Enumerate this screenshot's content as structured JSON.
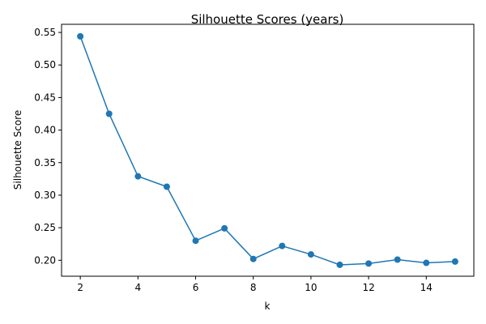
{
  "chart_data": {
    "type": "line",
    "title": "Silhouette Scores (years)",
    "xlabel": "k",
    "ylabel": "Silhouette Score",
    "x": [
      2,
      3,
      4,
      5,
      6,
      7,
      8,
      9,
      10,
      11,
      12,
      13,
      14,
      15
    ],
    "series": [
      {
        "values": [
          0.544,
          0.425,
          0.329,
          0.313,
          0.23,
          0.249,
          0.202,
          0.222,
          0.209,
          0.193,
          0.195,
          0.201,
          0.196,
          0.198
        ],
        "color": "#1f77b4",
        "marker": "circle"
      }
    ],
    "xlim": [
      1.35,
      15.65
    ],
    "ylim": [
      0.1755,
      0.5625
    ],
    "xticks": [
      2,
      4,
      6,
      8,
      10,
      12,
      14
    ],
    "xtick_labels": [
      "2",
      "4",
      "6",
      "8",
      "10",
      "12",
      "14"
    ],
    "yticks": [
      0.2,
      0.25,
      0.3,
      0.35,
      0.4,
      0.45,
      0.5,
      0.55
    ],
    "ytick_labels": [
      "0.20",
      "0.25",
      "0.30",
      "0.35",
      "0.40",
      "0.45",
      "0.50",
      "0.55"
    ],
    "grid": false,
    "legend": "none"
  }
}
